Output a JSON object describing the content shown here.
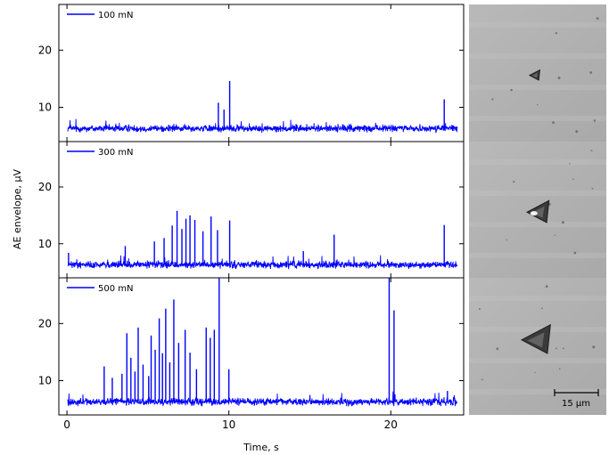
{
  "chart_data": {
    "type": "line",
    "xlabel": "Time, s",
    "ylabel": "AE envelope, µV",
    "xlim": [
      -0.5,
      24.5
    ],
    "ylim": [
      4,
      28
    ],
    "xticks": [
      0,
      10,
      20
    ],
    "yticks": [
      10,
      20
    ],
    "series_color": "#0000ff",
    "panels": [
      {
        "name": "100 mN",
        "baseline": 6.3,
        "peaks": [
          {
            "x": 9.35,
            "y": 10.8
          },
          {
            "x": 9.7,
            "y": 9.6
          },
          {
            "x": 10.05,
            "y": 14.6
          },
          {
            "x": 23.3,
            "y": 11.4
          }
        ]
      },
      {
        "name": "300 mN",
        "baseline": 6.3,
        "peaks": [
          {
            "x": 0.1,
            "y": 8.4
          },
          {
            "x": 3.6,
            "y": 9.6
          },
          {
            "x": 5.4,
            "y": 10.4
          },
          {
            "x": 6.0,
            "y": 11.0
          },
          {
            "x": 6.5,
            "y": 13.2
          },
          {
            "x": 6.8,
            "y": 15.8
          },
          {
            "x": 7.1,
            "y": 12.6
          },
          {
            "x": 7.35,
            "y": 14.4
          },
          {
            "x": 7.6,
            "y": 15.0
          },
          {
            "x": 7.9,
            "y": 14.2
          },
          {
            "x": 8.4,
            "y": 12.2
          },
          {
            "x": 8.9,
            "y": 14.8
          },
          {
            "x": 9.3,
            "y": 12.4
          },
          {
            "x": 10.05,
            "y": 14.1
          },
          {
            "x": 14.6,
            "y": 8.7
          },
          {
            "x": 16.5,
            "y": 11.6
          },
          {
            "x": 23.3,
            "y": 13.3
          }
        ]
      },
      {
        "name": "500 mN",
        "baseline": 6.3,
        "peaks": [
          {
            "x": 2.3,
            "y": 12.5
          },
          {
            "x": 2.8,
            "y": 10.5
          },
          {
            "x": 3.4,
            "y": 11.2
          },
          {
            "x": 3.7,
            "y": 18.3
          },
          {
            "x": 3.95,
            "y": 14.0
          },
          {
            "x": 4.2,
            "y": 11.6
          },
          {
            "x": 4.4,
            "y": 19.3
          },
          {
            "x": 4.7,
            "y": 12.8
          },
          {
            "x": 5.05,
            "y": 10.8
          },
          {
            "x": 5.2,
            "y": 17.9
          },
          {
            "x": 5.45,
            "y": 15.4
          },
          {
            "x": 5.7,
            "y": 20.9
          },
          {
            "x": 5.9,
            "y": 14.8
          },
          {
            "x": 6.1,
            "y": 22.6
          },
          {
            "x": 6.35,
            "y": 13.2
          },
          {
            "x": 6.6,
            "y": 24.2
          },
          {
            "x": 6.9,
            "y": 16.6
          },
          {
            "x": 7.3,
            "y": 18.9
          },
          {
            "x": 7.6,
            "y": 14.9
          },
          {
            "x": 8.0,
            "y": 12.0
          },
          {
            "x": 8.6,
            "y": 19.3
          },
          {
            "x": 8.85,
            "y": 17.5
          },
          {
            "x": 9.1,
            "y": 18.9
          },
          {
            "x": 9.4,
            "y": 28.0
          },
          {
            "x": 10.0,
            "y": 12.0
          },
          {
            "x": 19.9,
            "y": 28.0
          },
          {
            "x": 20.2,
            "y": 22.3
          },
          {
            "x": 23.5,
            "y": 8.2
          }
        ]
      }
    ],
    "scale_bar_label": "15 µm"
  }
}
